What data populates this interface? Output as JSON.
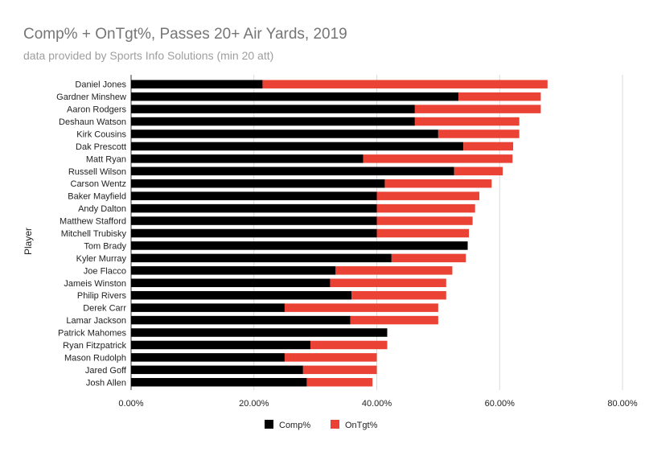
{
  "chart_data": {
    "type": "bar",
    "orientation": "horizontal",
    "stacked": true,
    "title": "Comp% + OnTgt%, Passes 20+ Air Yards, 2019",
    "subtitle": "data provided by Sports Info Solutions (min 20 att)",
    "xlabel": "",
    "ylabel": "Player",
    "xlim": [
      0,
      0.8
    ],
    "xticks": [
      0,
      0.2,
      0.4,
      0.6,
      0.8
    ],
    "xtick_labels": [
      "0.00%",
      "20.00%",
      "40.00%",
      "60.00%",
      "80.00%"
    ],
    "grid": true,
    "legend_position": "bottom",
    "categories": [
      "Daniel Jones",
      "Gardner Minshew",
      "Aaron Rodgers",
      "Deshaun Watson",
      "Kirk Cousins",
      "Dak Prescott",
      "Matt Ryan",
      "Russell Wilson",
      "Carson Wentz",
      "Baker Mayfield",
      "Andy Dalton",
      "Matthew Stafford",
      "Mitchell Trubisky",
      "Tom Brady",
      "Kyler Murray",
      "Joe Flacco",
      "Jameis Winston",
      "Philip Rivers",
      "Derek Carr",
      "Lamar Jackson",
      "Patrick Mahomes",
      "Ryan Fitzpatrick",
      "Mason Rudolph",
      "Jared Goff",
      "Josh Allen"
    ],
    "series": [
      {
        "name": "Comp%",
        "color": "#000000",
        "values": [
          0.214,
          0.533,
          0.462,
          0.462,
          0.5,
          0.541,
          0.378,
          0.526,
          0.413,
          0.4,
          0.4,
          0.4,
          0.4,
          0.548,
          0.424,
          0.333,
          0.324,
          0.359,
          0.25,
          0.357,
          0.417,
          0.292,
          0.25,
          0.28,
          0.286
        ]
      },
      {
        "name": "OnTgt%",
        "color": "#ea4335",
        "values": [
          0.464,
          0.134,
          0.205,
          0.17,
          0.132,
          0.081,
          0.243,
          0.079,
          0.174,
          0.167,
          0.16,
          0.156,
          0.15,
          0.0,
          0.121,
          0.19,
          0.189,
          0.154,
          0.25,
          0.143,
          0.0,
          0.125,
          0.15,
          0.12,
          0.107
        ]
      }
    ]
  }
}
